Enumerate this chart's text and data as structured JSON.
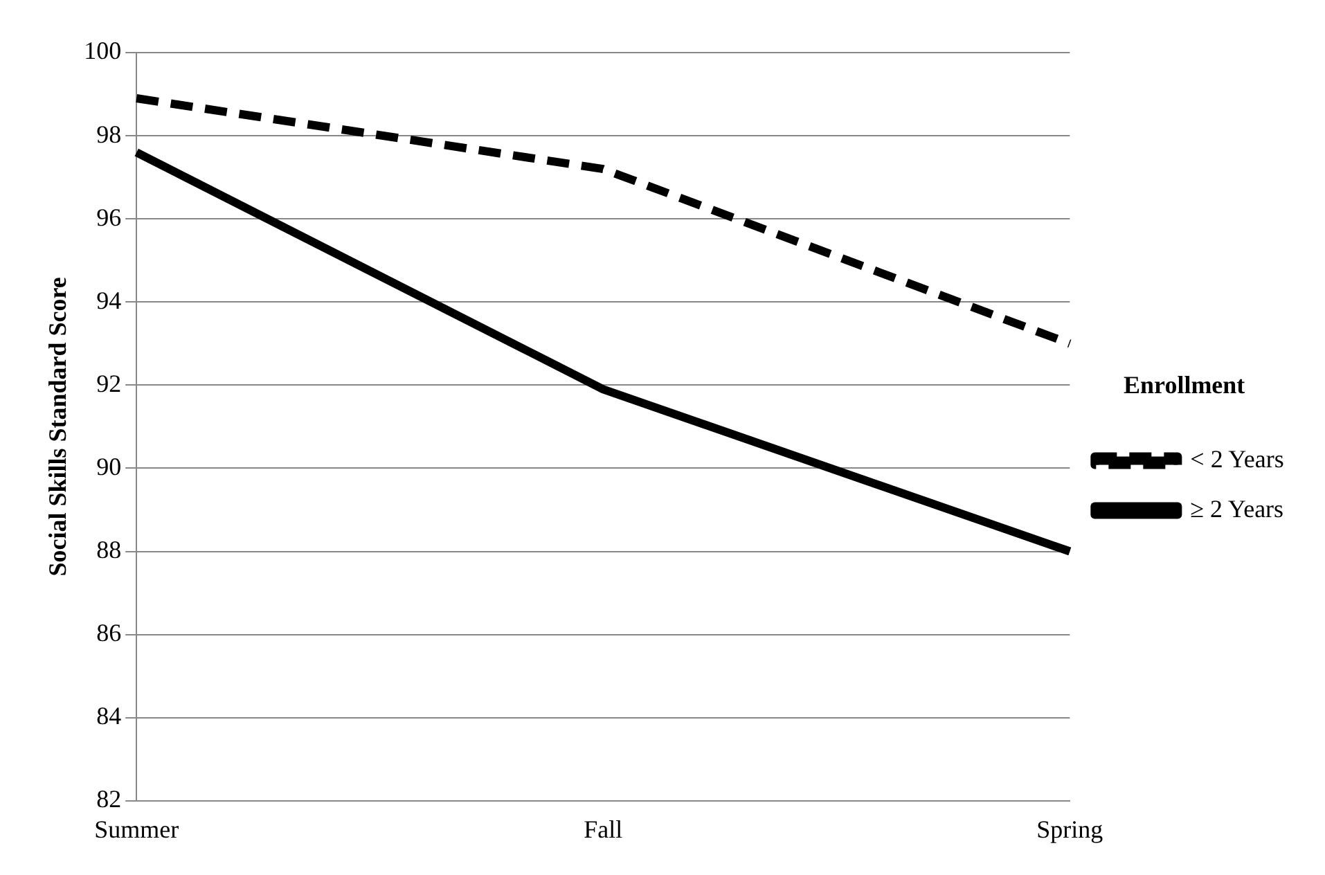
{
  "chart_data": {
    "type": "line",
    "ylabel": "Social Skills Standard Score",
    "legend_title": "Enrollment",
    "categories": [
      "Summer",
      "Fall",
      "Spring"
    ],
    "series": [
      {
        "name": "< 2 Years",
        "color": "#000000",
        "values": [
          98.9,
          97.2,
          93.0
        ],
        "line_style": "dashed"
      },
      {
        "name": "≥ 2 Years",
        "color": "#000000",
        "values": [
          97.6,
          91.9,
          88.0
        ],
        "line_style": "solid"
      }
    ],
    "ylim": [
      82,
      100
    ],
    "yticks": [
      82,
      84,
      86,
      88,
      90,
      92,
      94,
      96,
      98,
      100
    ],
    "grid": "y",
    "legend": "right",
    "marker": "none"
  }
}
